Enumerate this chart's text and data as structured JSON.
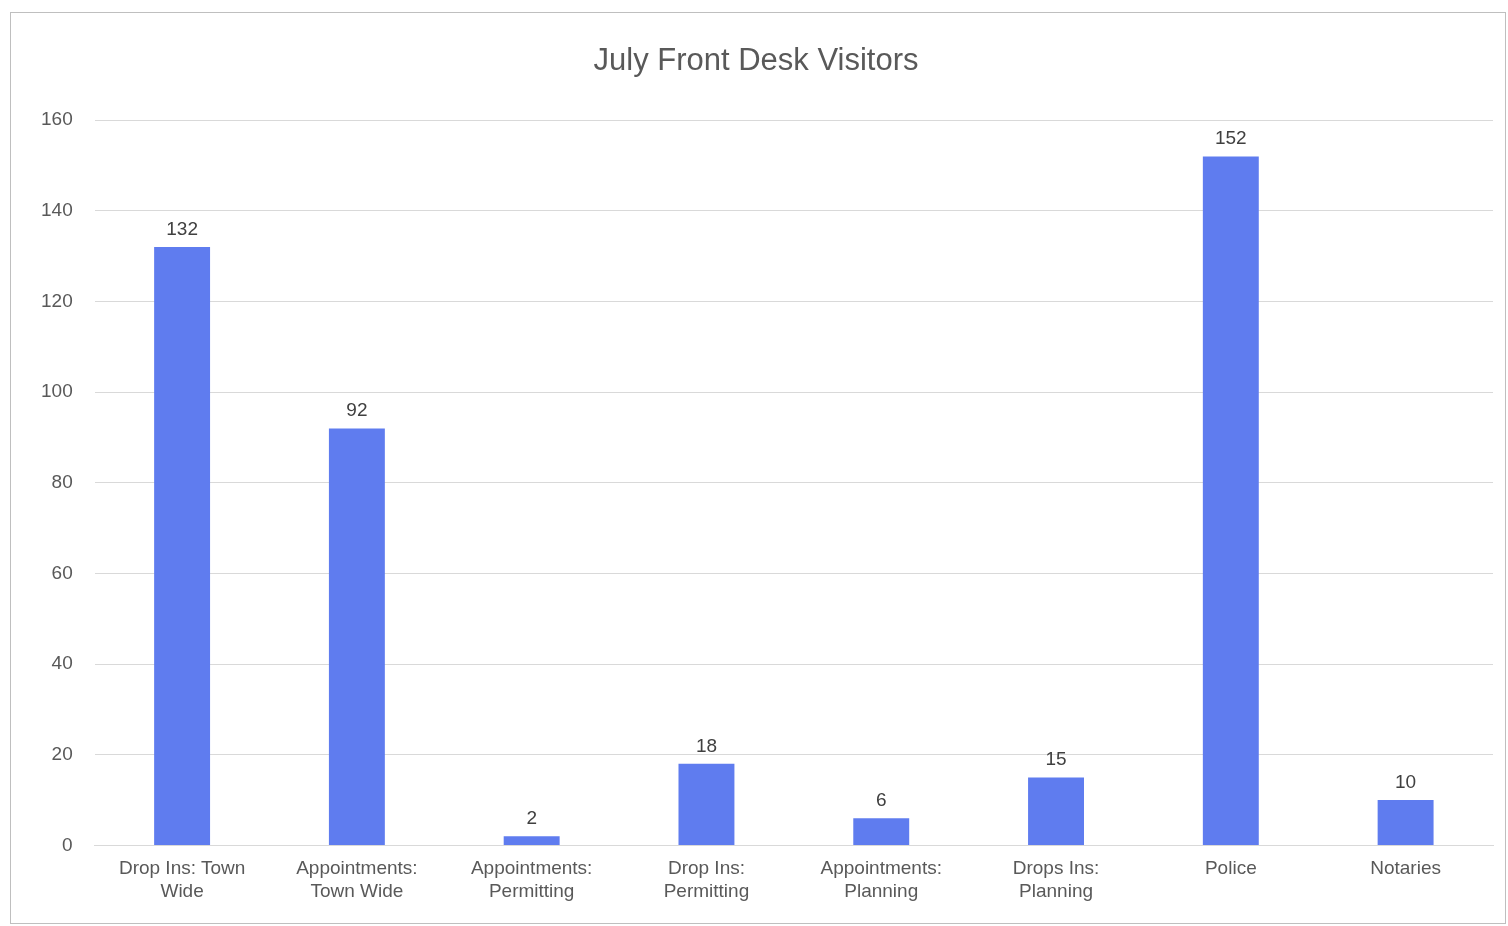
{
  "chart_data": {
    "type": "bar",
    "title": "July Front Desk Visitors",
    "categories": [
      "Drop Ins: Town Wide",
      "Appointments: Town Wide",
      "Appointments: Permitting",
      "Drop Ins: Permitting",
      "Appointments: Planning",
      "Drops Ins: Planning",
      "Police",
      "Notaries"
    ],
    "values": [
      132,
      92,
      2,
      18,
      6,
      15,
      152,
      10
    ],
    "color": "#5f7cef",
    "ylim": [
      0,
      160
    ],
    "yticks": [
      0,
      20,
      40,
      60,
      80,
      100,
      120,
      140,
      160
    ],
    "grid": "y",
    "legend": false,
    "data_labels": true
  }
}
